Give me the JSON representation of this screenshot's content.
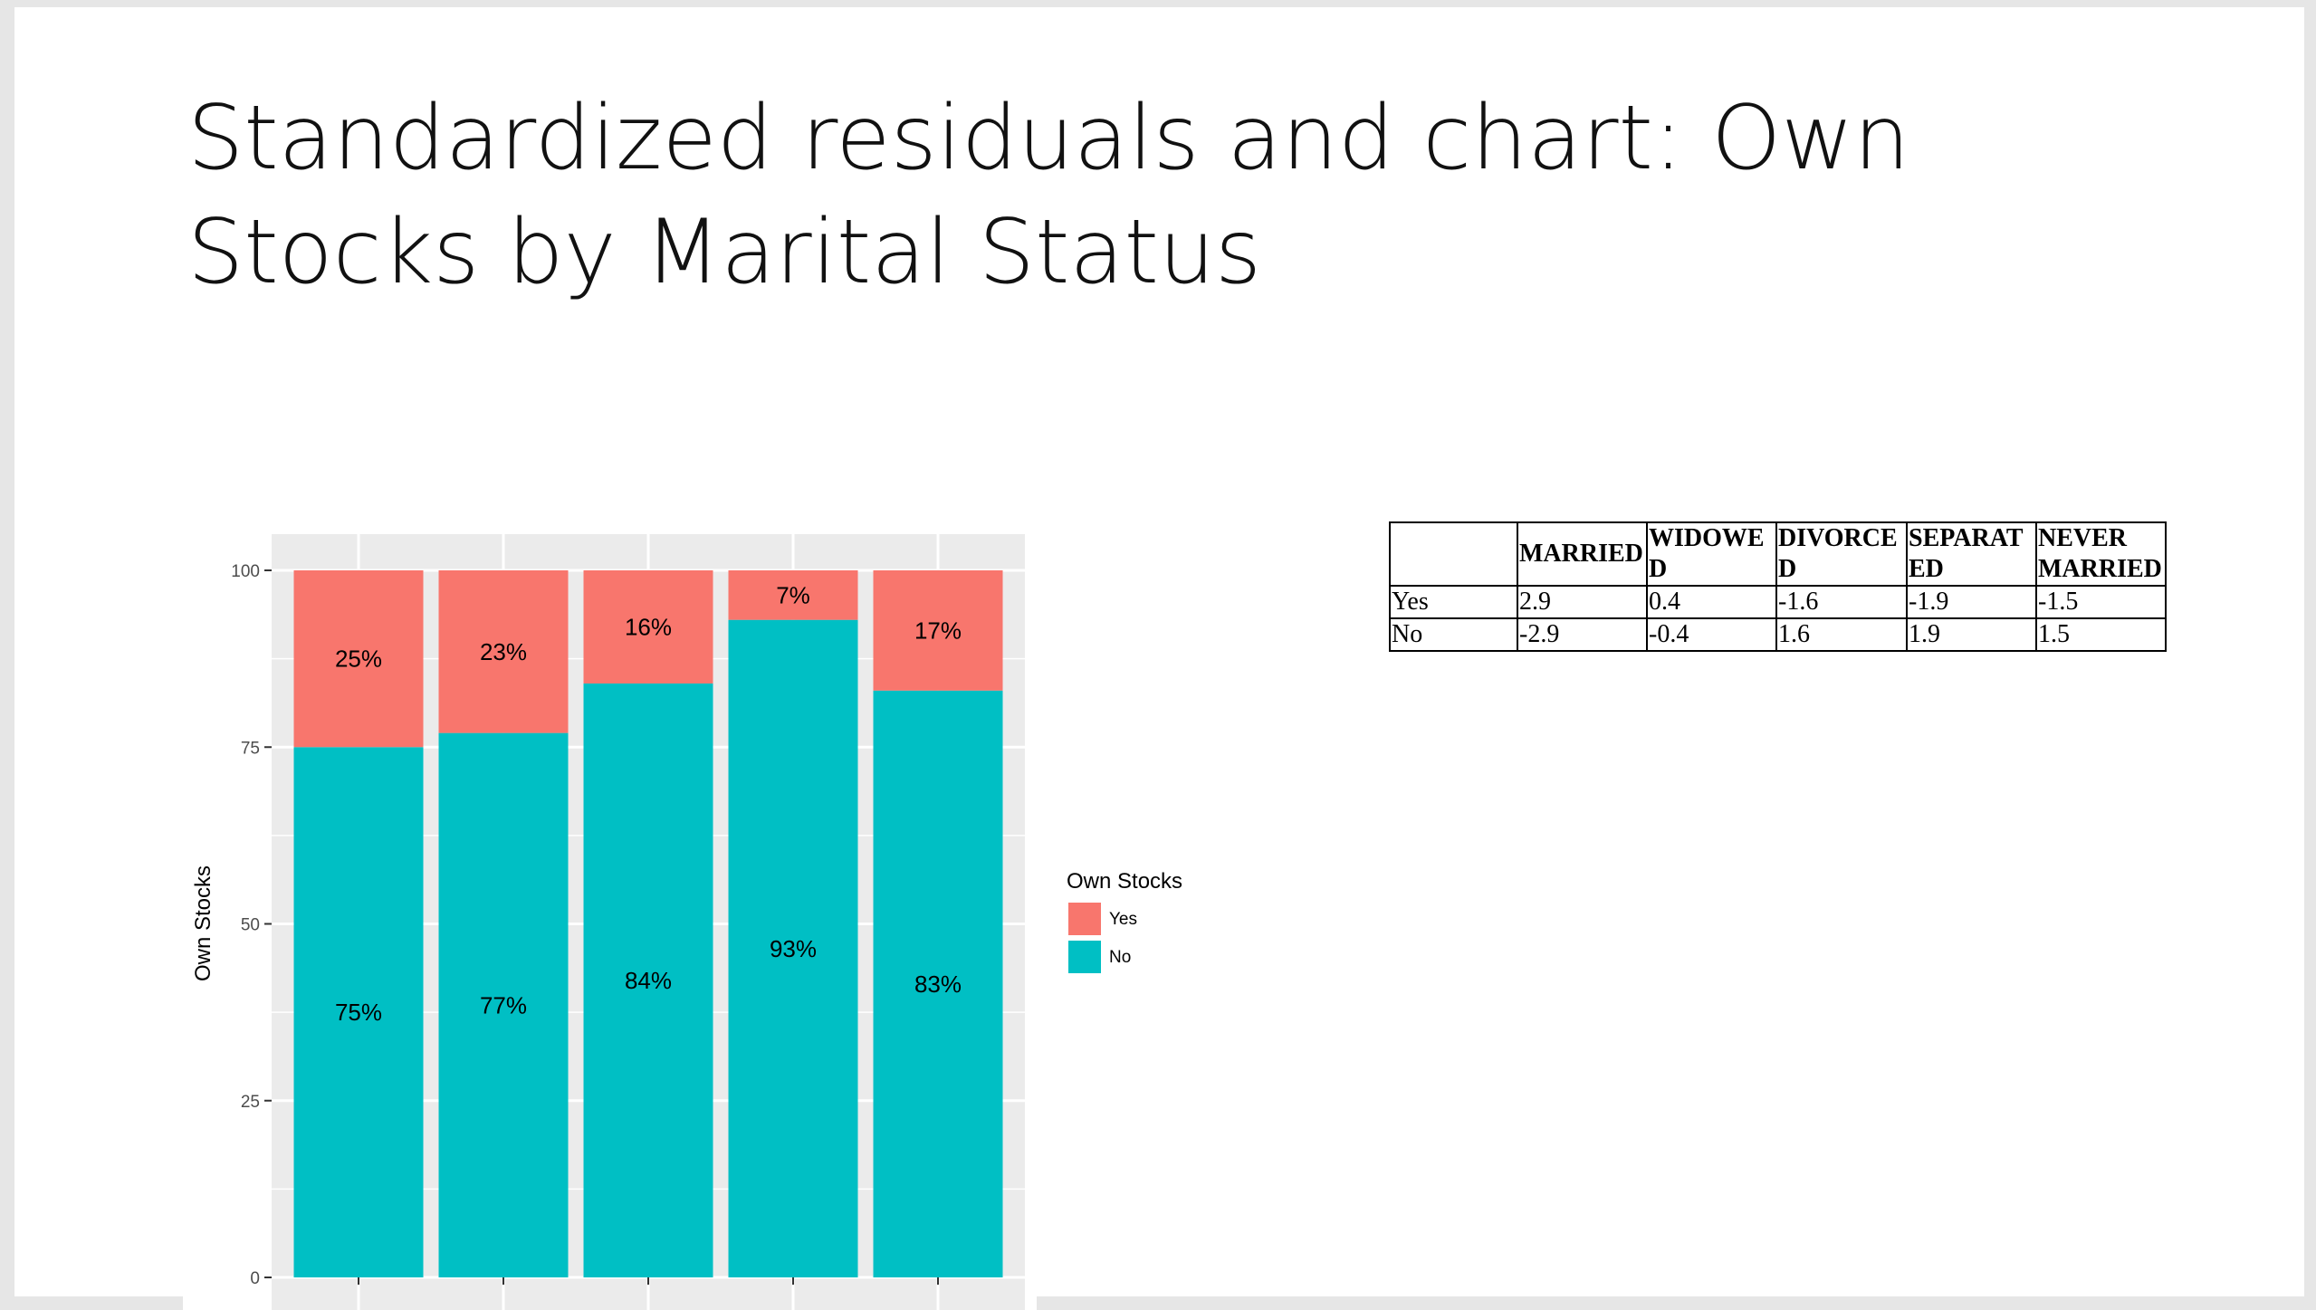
{
  "slide": {
    "title": "Standardized residuals and chart: Own Stocks by Marital Status"
  },
  "chart_data": {
    "type": "bar",
    "stacked": true,
    "title": "",
    "xlabel": "",
    "ylabel": "Own Stocks",
    "ylim": [
      0,
      100
    ],
    "yticks": [
      "0",
      "25",
      "50",
      "75",
      "100"
    ],
    "grid": true,
    "legend": {
      "title": "Own Stocks",
      "placement": "right"
    },
    "categories": [
      "",
      "",
      "",
      "",
      ""
    ],
    "series": [
      {
        "name": "Yes",
        "color": "#f8766d",
        "values": [
          25,
          23,
          16,
          7,
          17
        ],
        "labels": [
          "25%",
          "23%",
          "16%",
          "7%",
          "17%"
        ]
      },
      {
        "name": "No",
        "color": "#00bfc4",
        "values": [
          75,
          77,
          84,
          93,
          83
        ],
        "labels": [
          "75%",
          "77%",
          "84%",
          "93%",
          "83%"
        ]
      }
    ]
  },
  "table": {
    "headers": [
      "",
      "MARRIED",
      "WIDOWED",
      "DIVORCED",
      "SEPARATED",
      "NEVER MARRIED"
    ],
    "rows": [
      [
        "Yes",
        "2.9",
        "0.4",
        "-1.6",
        "-1.9",
        "-1.5"
      ],
      [
        "No",
        "-2.9",
        "-0.4",
        "1.6",
        "1.9",
        "1.5"
      ]
    ]
  }
}
